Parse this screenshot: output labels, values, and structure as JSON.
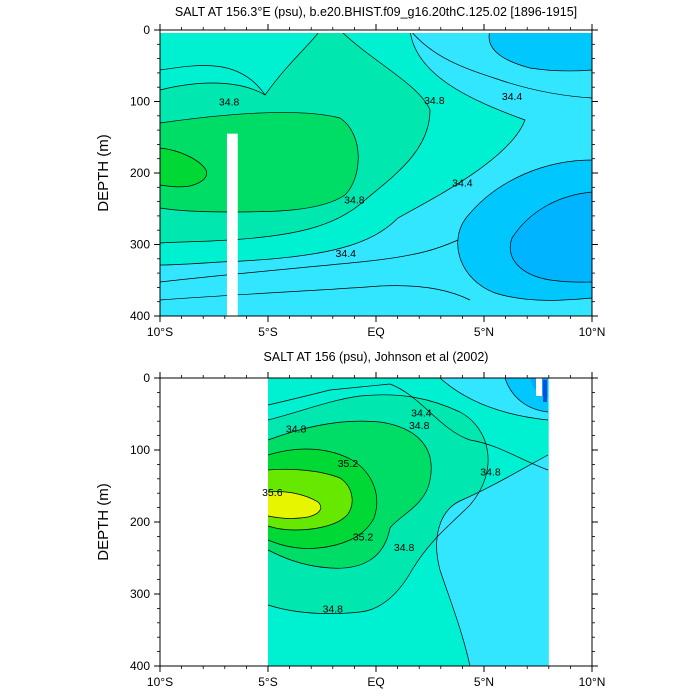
{
  "chart_data": [
    {
      "type": "contour",
      "title": "SALT AT 156.3°E (psu), b.e20.BHIST.f09_g16.20thC.125.02 [1896-1915]",
      "ylabel": "DEPTH (m)",
      "xlim": [
        -10,
        10
      ],
      "ylim": [
        400,
        0
      ],
      "x_ticks": [
        -10,
        -5,
        0,
        5,
        10
      ],
      "x_tick_labels": [
        "10°S",
        "5°S",
        "EQ",
        "5°N",
        "10°N"
      ],
      "y_ticks": [
        0,
        100,
        200,
        300,
        400
      ],
      "y_tick_labels": [
        "0",
        "100",
        "200",
        "300",
        "400"
      ],
      "contour_levels": [
        34.0,
        34.2,
        34.4,
        34.6,
        34.8,
        35.0,
        35.2,
        35.4,
        35.6
      ],
      "contour_labels": [
        {
          "x": -6.8,
          "depth": 100,
          "text": "34.8"
        },
        {
          "x": 2.7,
          "depth": 98,
          "text": "34.8"
        },
        {
          "x": 6.3,
          "depth": 92,
          "text": "34.4"
        },
        {
          "x": 4.0,
          "depth": 213,
          "text": "34.4"
        },
        {
          "x": -1.0,
          "depth": 237,
          "text": "34.8"
        },
        {
          "x": -1.4,
          "depth": 312,
          "text": "34.4"
        }
      ],
      "missing_data": [
        {
          "x_range": [
            -6.9,
            -6.4
          ],
          "depth_range": [
            145,
            400
          ]
        }
      ],
      "colors": {
        "fresh_dark": "#00a8ff",
        "fresh_mid": "#00c8ff",
        "fresh_light": "#33e6ff",
        "mid": "#00f0d2",
        "teal": "#00e8b0",
        "salty_light": "#00dd66",
        "salty": "#00d836",
        "salty_strong": "#66e800",
        "yellow": "#e8f500"
      }
    },
    {
      "type": "contour",
      "title": "SALT AT 156 (psu), Johnson et al (2002)",
      "ylabel": "DEPTH (m)",
      "xlim": [
        -10,
        10
      ],
      "ylim": [
        400,
        0
      ],
      "x_ticks": [
        -10,
        -5,
        0,
        5,
        10
      ],
      "x_tick_labels": [
        "10°S",
        "5°S",
        "EQ",
        "5°N",
        "10°N"
      ],
      "y_ticks": [
        0,
        100,
        200,
        300,
        400
      ],
      "y_tick_labels": [
        "0",
        "100",
        "200",
        "300",
        "400"
      ],
      "data_xrange": [
        -5,
        8
      ],
      "contour_labels": [
        {
          "x": -3.7,
          "depth": 70,
          "text": "34.8"
        },
        {
          "x": 2.1,
          "depth": 48,
          "text": "34.4"
        },
        {
          "x": 2.0,
          "depth": 65,
          "text": "34.8"
        },
        {
          "x": 5.3,
          "depth": 130,
          "text": "34.8"
        },
        {
          "x": -1.3,
          "depth": 118,
          "text": "35.2"
        },
        {
          "x": -4.8,
          "depth": 158,
          "text": "35.6"
        },
        {
          "x": -0.6,
          "depth": 220,
          "text": "35.2"
        },
        {
          "x": 1.3,
          "depth": 235,
          "text": "34.8"
        },
        {
          "x": -2.0,
          "depth": 320,
          "text": "34.8"
        }
      ]
    }
  ]
}
